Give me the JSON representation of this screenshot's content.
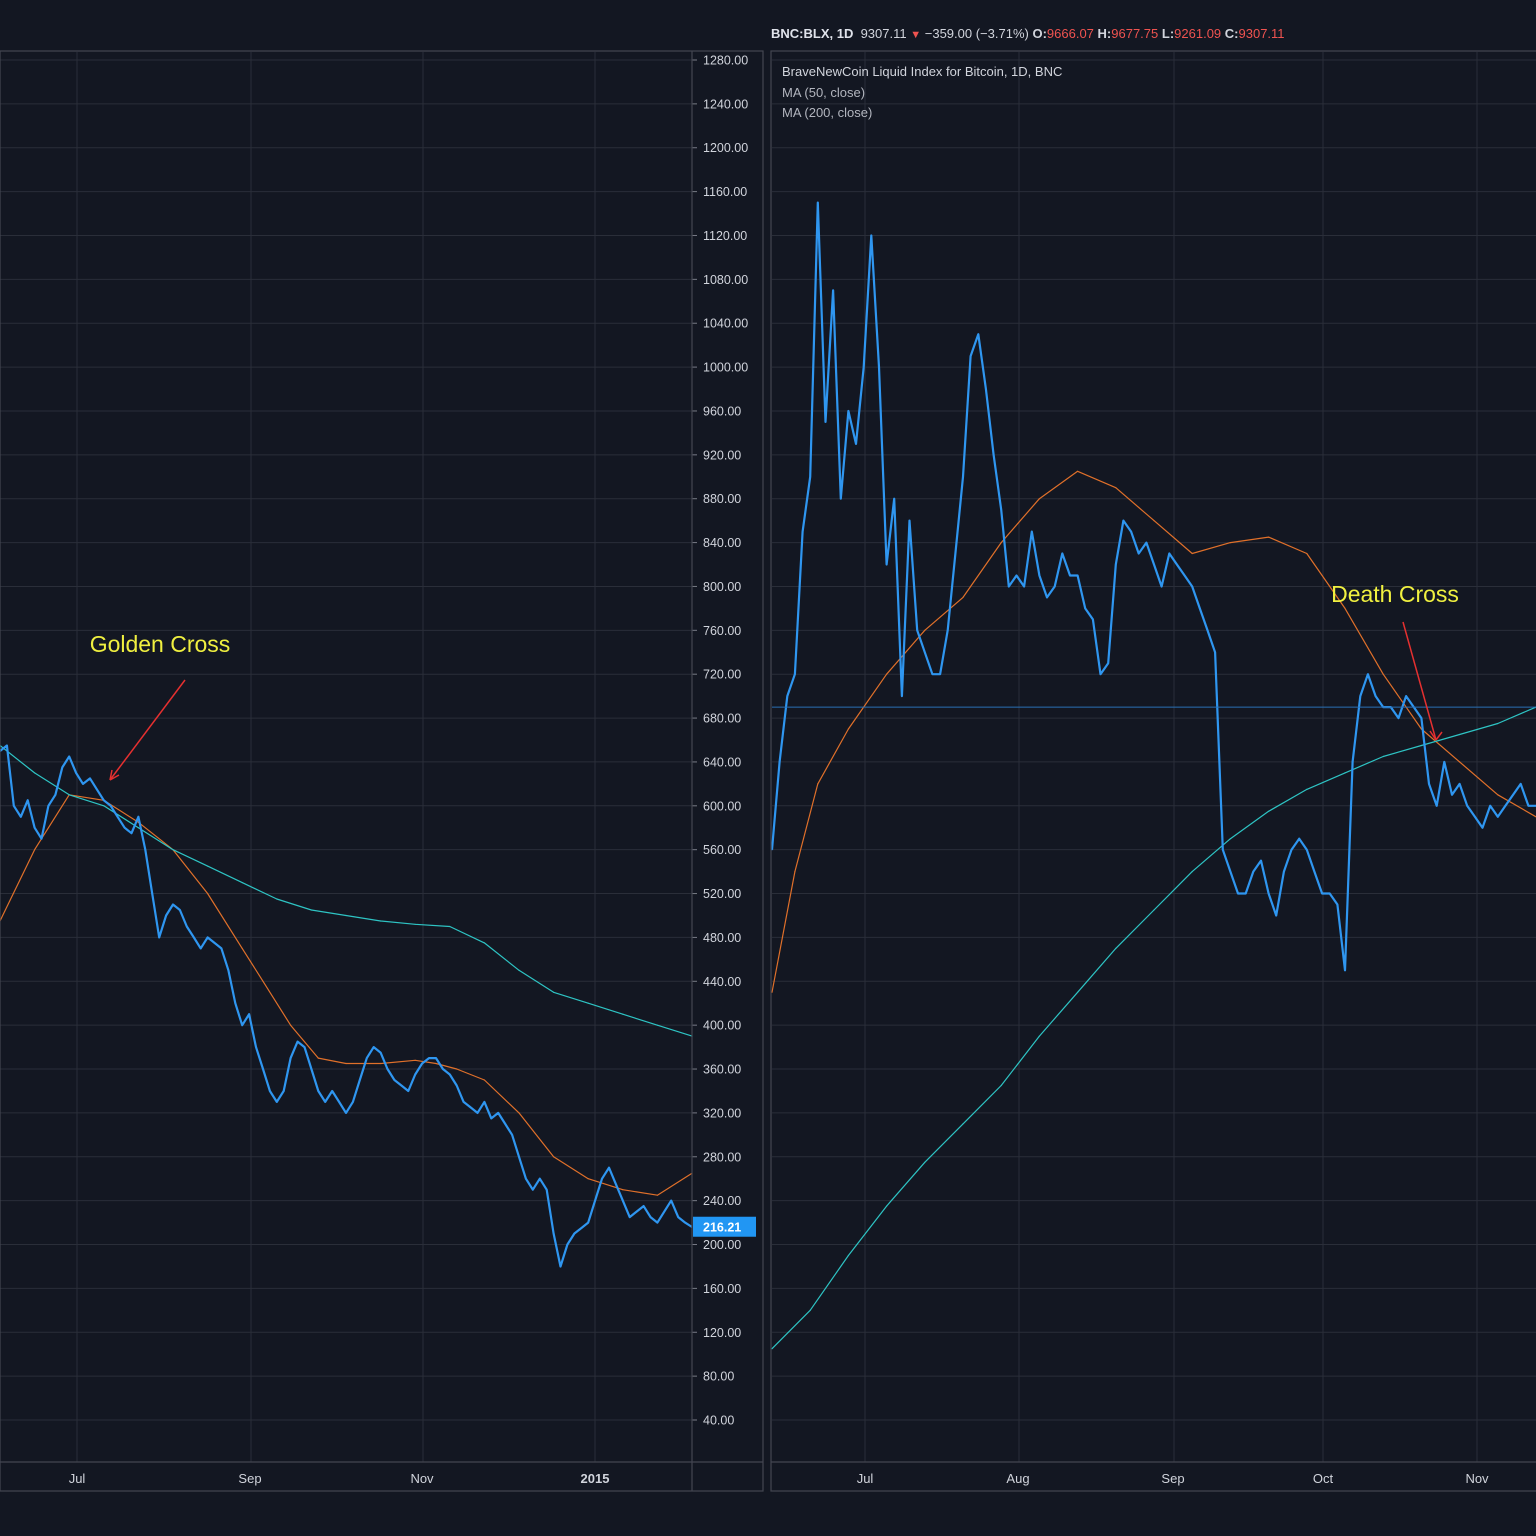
{
  "header": {
    "symbol": "BNC:BLX, 1D",
    "last": "9307.11",
    "change": "−359.00 (−3.71%)",
    "o_label": "O:",
    "o_value": "9666.07",
    "h_label": "H:",
    "h_value": "9677.75",
    "l_label": "L:",
    "l_value": "9261.09",
    "c_label": "C:",
    "c_value": "9307.11"
  },
  "legend": {
    "title": "BraveNewCoin Liquid Index for Bitcoin, 1D, BNC",
    "ma50": "MA (50, close)",
    "ma200": "MA (200, close)"
  },
  "colors": {
    "background": "#131722",
    "grid": "#2a2e39",
    "price": "#2f96f0",
    "ma50": "#e0702a",
    "ma200": "#2ec4c4",
    "annotation_text": "#f0f040",
    "arrow": "#e53030",
    "axis_text": "#d1d4dc",
    "price_tag": "#2196f3"
  },
  "chart_data": [
    {
      "type": "line",
      "annotation": "Golden Cross",
      "ylim": [
        0,
        1320
      ],
      "yticks": [
        "40.00",
        "80.00",
        "120.00",
        "160.00",
        "200.00",
        "240.00",
        "280.00",
        "320.00",
        "360.00",
        "400.00",
        "440.00",
        "480.00",
        "520.00",
        "560.00",
        "600.00",
        "640.00",
        "680.00",
        "720.00",
        "760.00",
        "800.00",
        "840.00",
        "880.00",
        "920.00",
        "960.00",
        "1000.00",
        "1040.00",
        "1080.00",
        "1120.00",
        "1160.00",
        "1200.00",
        "1240.00",
        "1280.00"
      ],
      "xticks": [
        "Jul",
        "Sep",
        "Nov",
        "2015"
      ],
      "last_price_label": "216.21",
      "series": [
        {
          "name": "MA (50, close)",
          "x": [
            0,
            0.05,
            0.1,
            0.15,
            0.2,
            0.25,
            0.3,
            0.35,
            0.38,
            0.42,
            0.46,
            0.5,
            0.55,
            0.6,
            0.63,
            0.66,
            0.7,
            0.75,
            0.8,
            0.85,
            0.9,
            0.95,
            1.0
          ],
          "y": [
            495,
            560,
            610,
            605,
            585,
            560,
            520,
            470,
            440,
            400,
            370,
            365,
            365,
            368,
            365,
            360,
            350,
            320,
            280,
            260,
            250,
            245,
            265
          ]
        },
        {
          "name": "MA (200, close)",
          "x": [
            0,
            0.05,
            0.1,
            0.15,
            0.2,
            0.25,
            0.3,
            0.35,
            0.4,
            0.45,
            0.5,
            0.55,
            0.6,
            0.65,
            0.7,
            0.75,
            0.8,
            0.85,
            0.9,
            0.95,
            1.0
          ],
          "y": [
            655,
            630,
            610,
            600,
            580,
            560,
            545,
            530,
            515,
            505,
            500,
            495,
            492,
            490,
            475,
            450,
            430,
            420,
            410,
            400,
            390
          ]
        },
        {
          "name": "price",
          "x": [
            0,
            0.01,
            0.02,
            0.03,
            0.04,
            0.05,
            0.06,
            0.07,
            0.08,
            0.09,
            0.1,
            0.11,
            0.12,
            0.13,
            0.14,
            0.15,
            0.16,
            0.17,
            0.18,
            0.19,
            0.2,
            0.21,
            0.22,
            0.23,
            0.24,
            0.25,
            0.26,
            0.27,
            0.28,
            0.29,
            0.3,
            0.31,
            0.32,
            0.33,
            0.34,
            0.35,
            0.36,
            0.37,
            0.38,
            0.39,
            0.4,
            0.41,
            0.42,
            0.43,
            0.44,
            0.45,
            0.46,
            0.47,
            0.48,
            0.49,
            0.5,
            0.51,
            0.52,
            0.53,
            0.54,
            0.55,
            0.56,
            0.57,
            0.58,
            0.59,
            0.6,
            0.61,
            0.62,
            0.63,
            0.64,
            0.65,
            0.66,
            0.67,
            0.68,
            0.69,
            0.7,
            0.71,
            0.72,
            0.73,
            0.74,
            0.75,
            0.76,
            0.77,
            0.78,
            0.79,
            0.8,
            0.81,
            0.82,
            0.83,
            0.84,
            0.85,
            0.86,
            0.87,
            0.88,
            0.89,
            0.9,
            0.91,
            0.92,
            0.93,
            0.94,
            0.95,
            0.96,
            0.97,
            0.98,
            0.99,
            1.0
          ],
          "y": [
            650,
            655,
            600,
            590,
            605,
            580,
            570,
            600,
            610,
            635,
            645,
            630,
            620,
            625,
            615,
            605,
            600,
            590,
            580,
            575,
            590,
            560,
            520,
            480,
            500,
            510,
            505,
            490,
            480,
            470,
            480,
            475,
            470,
            450,
            420,
            400,
            410,
            380,
            360,
            340,
            330,
            340,
            370,
            385,
            380,
            360,
            340,
            330,
            340,
            330,
            320,
            330,
            350,
            370,
            380,
            375,
            360,
            350,
            345,
            340,
            355,
            365,
            370,
            370,
            360,
            355,
            345,
            330,
            325,
            320,
            330,
            315,
            320,
            310,
            300,
            280,
            260,
            250,
            260,
            250,
            210,
            180,
            200,
            210,
            215,
            220,
            240,
            260,
            270,
            255,
            240,
            225,
            230,
            235,
            225,
            220,
            230,
            240,
            225,
            220,
            216
          ]
        }
      ]
    },
    {
      "type": "line",
      "annotation": "Death Cross",
      "ylim": [
        0,
        1320
      ],
      "xticks": [
        "Jul",
        "Aug",
        "Sep",
        "Oct",
        "Nov"
      ],
      "horizontal_line": 690,
      "series": [
        {
          "name": "MA (50, close)",
          "x": [
            0,
            0.03,
            0.06,
            0.1,
            0.15,
            0.2,
            0.25,
            0.3,
            0.35,
            0.4,
            0.45,
            0.5,
            0.55,
            0.6,
            0.65,
            0.7,
            0.75,
            0.8,
            0.85,
            0.9,
            0.95,
            1.0
          ],
          "y": [
            430,
            540,
            620,
            670,
            720,
            760,
            790,
            840,
            880,
            905,
            890,
            860,
            830,
            840,
            845,
            830,
            780,
            720,
            670,
            640,
            610,
            590
          ]
        },
        {
          "name": "MA (200, close)",
          "x": [
            0,
            0.05,
            0.1,
            0.15,
            0.2,
            0.25,
            0.3,
            0.35,
            0.4,
            0.45,
            0.5,
            0.55,
            0.6,
            0.65,
            0.7,
            0.75,
            0.8,
            0.85,
            0.9,
            0.95,
            1.0
          ],
          "y": [
            105,
            140,
            190,
            235,
            275,
            310,
            345,
            390,
            430,
            470,
            505,
            540,
            570,
            595,
            615,
            630,
            645,
            655,
            665,
            675,
            690
          ]
        },
        {
          "name": "price",
          "x": [
            0,
            0.01,
            0.02,
            0.03,
            0.04,
            0.05,
            0.06,
            0.07,
            0.08,
            0.09,
            0.1,
            0.11,
            0.12,
            0.13,
            0.14,
            0.15,
            0.16,
            0.17,
            0.18,
            0.19,
            0.2,
            0.21,
            0.22,
            0.23,
            0.24,
            0.25,
            0.26,
            0.27,
            0.28,
            0.29,
            0.3,
            0.31,
            0.32,
            0.33,
            0.34,
            0.35,
            0.36,
            0.37,
            0.38,
            0.39,
            0.4,
            0.41,
            0.42,
            0.43,
            0.44,
            0.45,
            0.46,
            0.47,
            0.48,
            0.49,
            0.5,
            0.51,
            0.52,
            0.53,
            0.54,
            0.55,
            0.56,
            0.57,
            0.58,
            0.59,
            0.6,
            0.61,
            0.62,
            0.63,
            0.64,
            0.65,
            0.66,
            0.67,
            0.68,
            0.69,
            0.7,
            0.71,
            0.72,
            0.73,
            0.74,
            0.75,
            0.76,
            0.77,
            0.78,
            0.79,
            0.8,
            0.81,
            0.82,
            0.83,
            0.84,
            0.85,
            0.86,
            0.87,
            0.88,
            0.89,
            0.9,
            0.91,
            0.92,
            0.93,
            0.94,
            0.95,
            0.96,
            0.97,
            0.98,
            0.99,
            1.0
          ],
          "y": [
            560,
            640,
            700,
            720,
            850,
            900,
            1150,
            950,
            1070,
            880,
            960,
            930,
            1000,
            1120,
            1000,
            820,
            880,
            700,
            860,
            760,
            740,
            720,
            720,
            760,
            830,
            900,
            1010,
            1030,
            980,
            920,
            870,
            800,
            810,
            800,
            850,
            810,
            790,
            800,
            830,
            810,
            810,
            780,
            770,
            720,
            730,
            820,
            860,
            850,
            830,
            840,
            820,
            800,
            830,
            820,
            810,
            800,
            780,
            760,
            740,
            560,
            540,
            520,
            520,
            540,
            550,
            520,
            500,
            540,
            560,
            570,
            560,
            540,
            520,
            520,
            510,
            450,
            640,
            700,
            720,
            700,
            690,
            690,
            680,
            700,
            690,
            680,
            620,
            600,
            640,
            610,
            620,
            600,
            590,
            580,
            600,
            590,
            600,
            610,
            620,
            600,
            600
          ]
        }
      ]
    }
  ]
}
